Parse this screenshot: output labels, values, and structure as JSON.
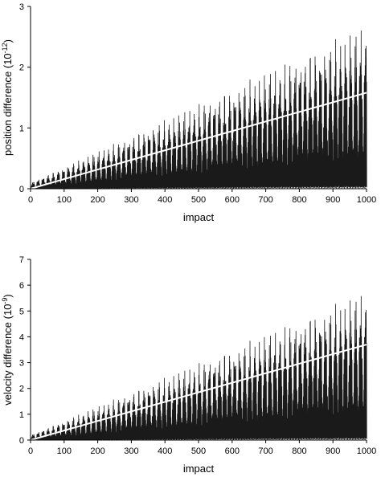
{
  "chart_data": [
    {
      "type": "line",
      "xlabel": "impact",
      "ylabel": "position difference (10",
      "ylabel_exponent": "-12",
      "ylabel_close": ")",
      "xlim": [
        0,
        1000
      ],
      "ylim": [
        0,
        3
      ],
      "xticks": [
        0,
        100,
        200,
        300,
        400,
        500,
        600,
        700,
        800,
        900,
        1000
      ],
      "yticks": [
        0,
        1,
        2,
        3
      ],
      "grid": false,
      "series": [
        {
          "color": "#1a1a1a",
          "description_range": "oscillates between ~0 and a peak growing linearly to ~2.8 at impact 1000",
          "x": [
            0,
            1000
          ],
          "peak": [
            0.1,
            2.8
          ],
          "floor": [
            0.0,
            0.0
          ]
        },
        {
          "color": "#ffffff",
          "x": [
            0,
            1000
          ],
          "y": [
            0.0,
            1.58
          ]
        }
      ]
    },
    {
      "type": "line",
      "xlabel": "impact",
      "ylabel": "velocity difference (10",
      "ylabel_exponent": "-9",
      "ylabel_close": ")",
      "xlim": [
        0,
        1000
      ],
      "ylim": [
        0,
        7
      ],
      "xticks": [
        0,
        100,
        200,
        300,
        400,
        500,
        600,
        700,
        800,
        900,
        1000
      ],
      "yticks": [
        0,
        1,
        2,
        3,
        4,
        5,
        6,
        7
      ],
      "grid": false,
      "series": [
        {
          "color": "#1a1a1a",
          "x": [
            0,
            1000
          ],
          "peak": [
            0.2,
            6.0
          ],
          "floor": [
            0.0,
            0.0
          ]
        },
        {
          "color": "#ffffff",
          "x": [
            0,
            1000
          ],
          "y": [
            0.0,
            3.7
          ]
        }
      ]
    }
  ]
}
